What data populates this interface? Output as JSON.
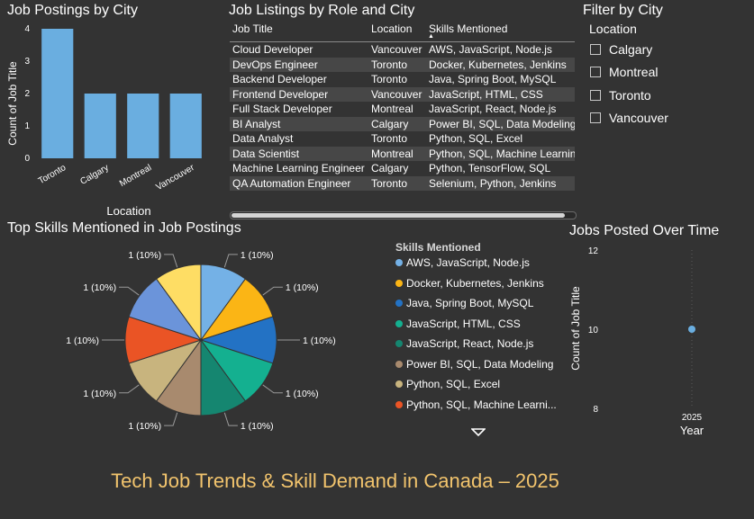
{
  "colors": {
    "background": "#333333",
    "bar": "#6aaee0",
    "title_accent": "#f2c46d",
    "row_alt": "#474747"
  },
  "bar_visual": {
    "title": "Job Postings by City",
    "xlabel": "Location",
    "ylabel": "Count of Job Title",
    "chart_data": {
      "type": "bar",
      "categories": [
        "Toronto",
        "Calgary",
        "Montreal",
        "Vancouver"
      ],
      "values": [
        4,
        2,
        2,
        2
      ],
      "xlabel": "Location",
      "ylabel": "Count of Job Title",
      "ylim": [
        0,
        4
      ],
      "yticks": [
        0,
        1,
        2,
        3,
        4
      ],
      "grid": false
    }
  },
  "table_visual": {
    "title": "Job Listings by Role and City",
    "columns": [
      "Job Title",
      "Location",
      "Skills Mentioned"
    ],
    "sorted_column": "Skills Mentioned",
    "rows": [
      [
        "Cloud Developer",
        "Vancouver",
        "AWS, JavaScript, Node.js"
      ],
      [
        "DevOps Engineer",
        "Toronto",
        "Docker, Kubernetes, Jenkins"
      ],
      [
        "Backend Developer",
        "Toronto",
        "Java, Spring Boot, MySQL"
      ],
      [
        "Frontend Developer",
        "Vancouver",
        "JavaScript, HTML, CSS"
      ],
      [
        "Full Stack Developer",
        "Montreal",
        "JavaScript, React, Node.js"
      ],
      [
        "BI Analyst",
        "Calgary",
        "Power BI, SQL, Data Modeling"
      ],
      [
        "Data Analyst",
        "Toronto",
        "Python, SQL, Excel"
      ],
      [
        "Data Scientist",
        "Montreal",
        "Python, SQL, Machine Learning"
      ],
      [
        "Machine Learning Engineer",
        "Calgary",
        "Python, TensorFlow, SQL"
      ],
      [
        "QA Automation Engineer",
        "Toronto",
        "Selenium, Python, Jenkins"
      ]
    ]
  },
  "slicer": {
    "title": "Filter by City",
    "field": "Location",
    "options": [
      "Calgary",
      "Montreal",
      "Toronto",
      "Vancouver"
    ]
  },
  "pie_visual": {
    "title": "Top Skills Mentioned in Job Postings",
    "legend_title": "Skills Mentioned",
    "legend_items": [
      {
        "label": "AWS, JavaScript, Node.js",
        "color": "#74b1e6"
      },
      {
        "label": "Docker, Kubernetes, Jenkins",
        "color": "#fbb515"
      },
      {
        "label": "Java, Spring Boot, MySQL",
        "color": "#2372c4"
      },
      {
        "label": "JavaScript, HTML, CSS",
        "color": "#14b090"
      },
      {
        "label": "JavaScript, React, Node.js",
        "color": "#158670"
      },
      {
        "label": "Power BI, SQL, Data Modeling",
        "color": "#a88a6e"
      },
      {
        "label": "Python, SQL, Excel",
        "color": "#c8b47e"
      },
      {
        "label": "Python, SQL, Machine Learni...",
        "color": "#ea5425"
      }
    ],
    "legend_more_icon": "chevron-down-icon",
    "chart_data": {
      "type": "pie",
      "labels": [
        "AWS, JavaScript, Node.js",
        "Docker, Kubernetes, Jenkins",
        "Java, Spring Boot, MySQL",
        "JavaScript, HTML, CSS",
        "JavaScript, React, Node.js",
        "Power BI, SQL, Data Modeling",
        "Python, SQL, Excel",
        "Python, SQL, Machine Learning",
        "Python, TensorFlow, SQL",
        "Selenium, Python, Jenkins"
      ],
      "values": [
        1,
        1,
        1,
        1,
        1,
        1,
        1,
        1,
        1,
        1
      ],
      "data_labels": [
        "1 (10%)",
        "1 (10%)",
        "1 (10%)",
        "1 (10%)",
        "1 (10%)",
        "1 (10%)",
        "1 (10%)",
        "1 (10%)",
        "1 (10%)",
        "1 (10%)"
      ],
      "colors": [
        "#74b1e6",
        "#fbb515",
        "#2372c4",
        "#14b090",
        "#158670",
        "#a88a6e",
        "#c8b47e",
        "#ea5425",
        "#6b94da",
        "#fedd64"
      ]
    }
  },
  "scatter_visual": {
    "title": "Jobs Posted Over Time",
    "xlabel": "Year",
    "ylabel": "Count of Job Title",
    "chart_data": {
      "type": "scatter",
      "x": [
        2025
      ],
      "y": [
        10
      ],
      "xticks": [
        "2025"
      ],
      "yticks": [
        8,
        10,
        12
      ],
      "ylim": [
        8,
        12
      ],
      "xlabel": "Year",
      "ylabel": "Count of Job Title",
      "point_color": "#6aaee0"
    }
  },
  "report_title": "Tech Job Trends & Skill Demand in Canada – 2025"
}
